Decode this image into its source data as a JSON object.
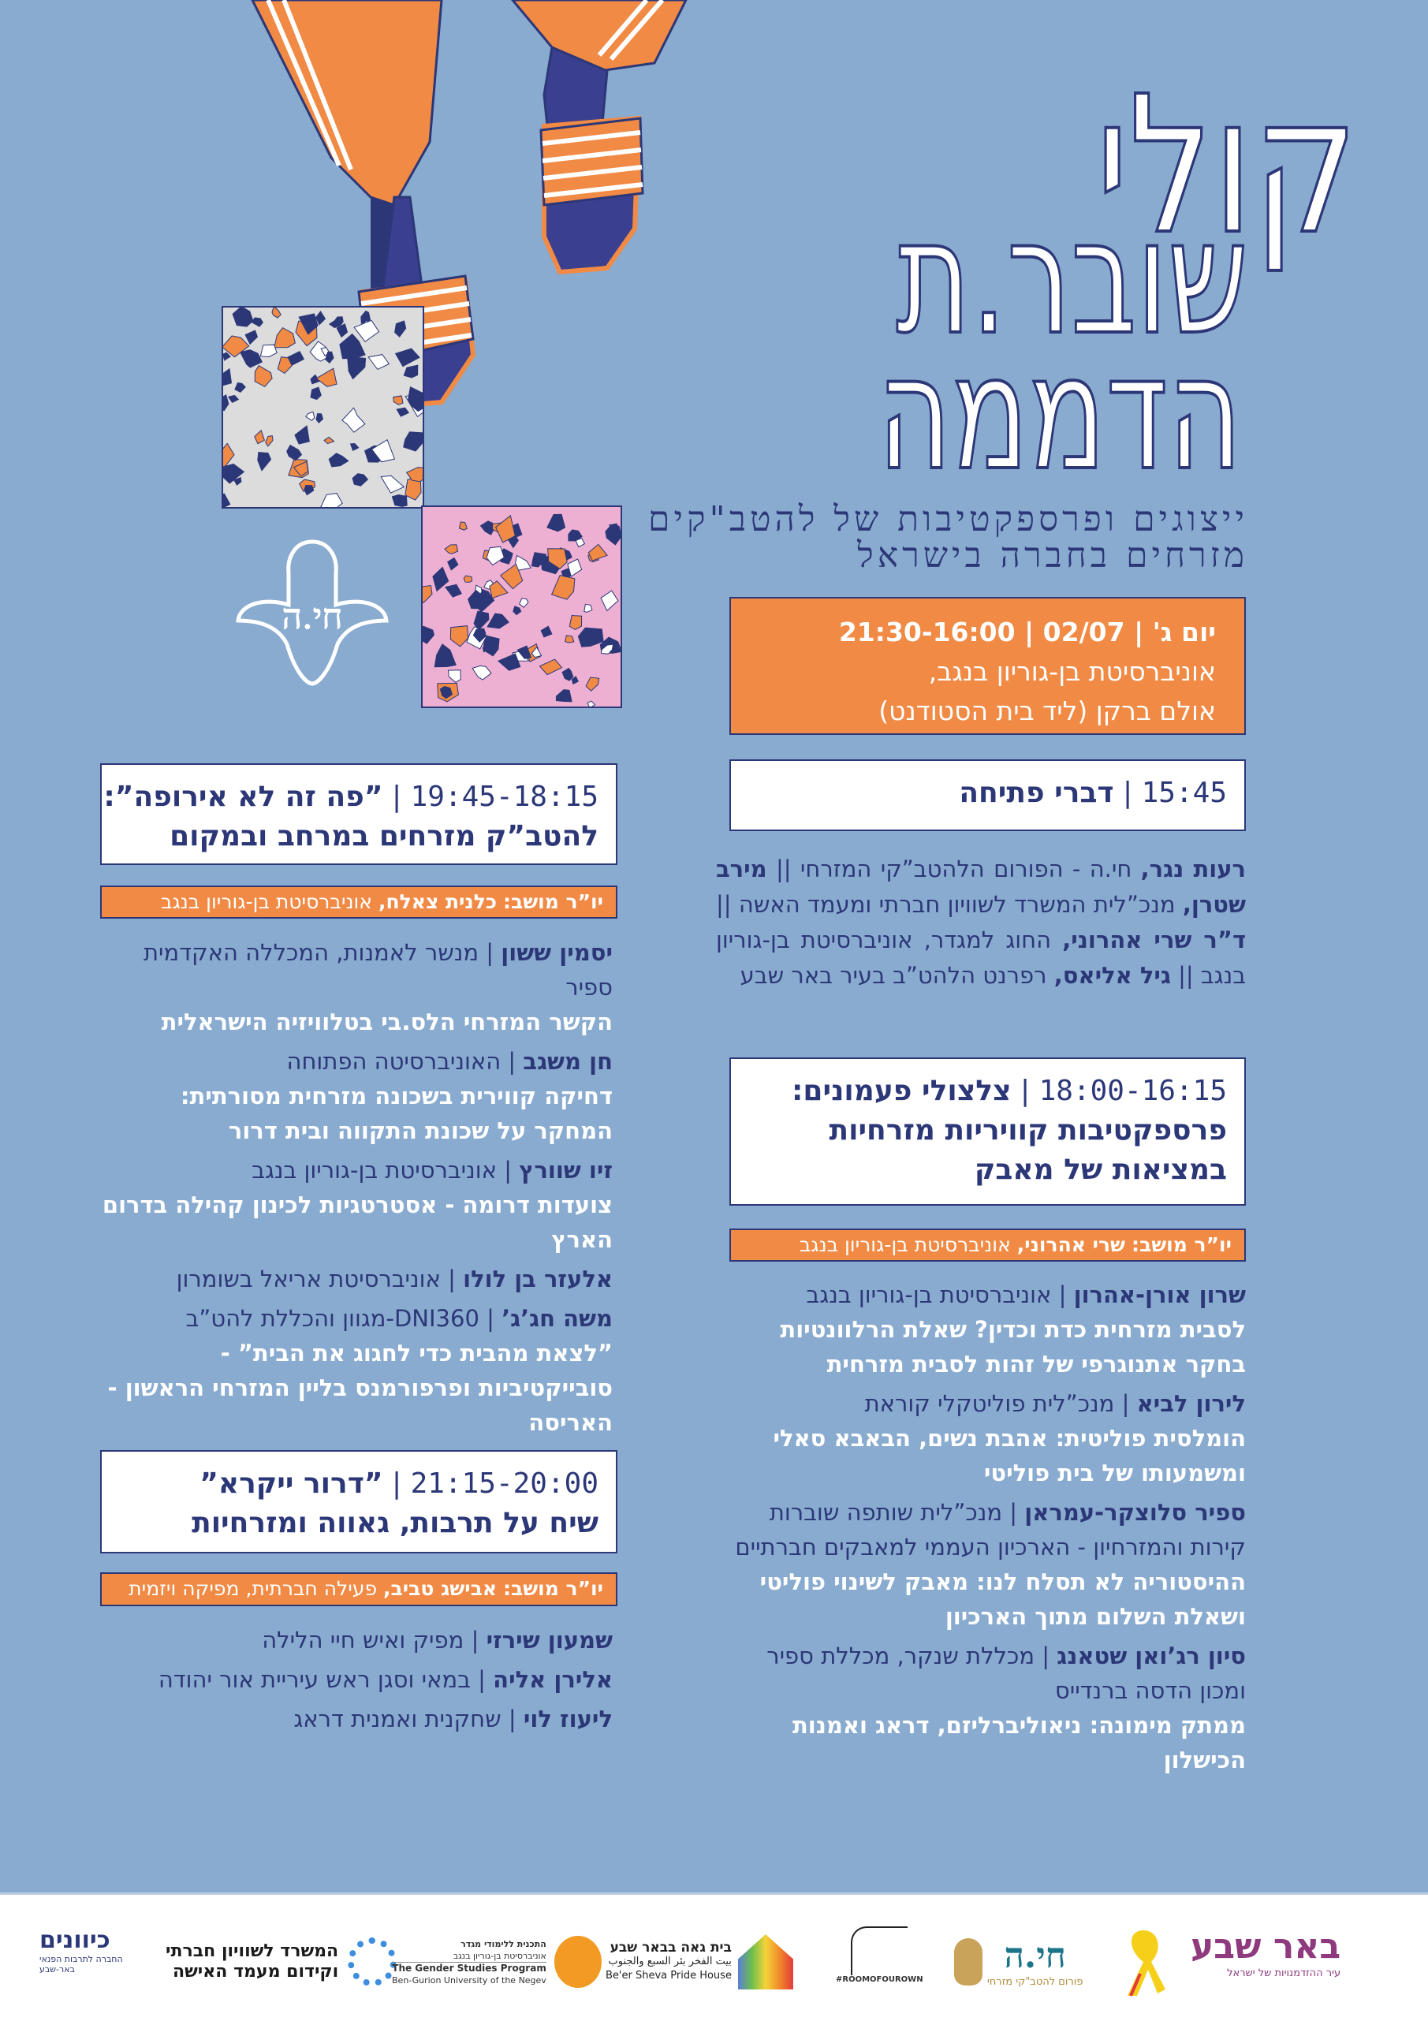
{
  "title": {
    "line1": "קולי",
    "line2": "שובר.ת",
    "line3": "הדממה"
  },
  "subtitle": {
    "line1": "ייצוגים ופרספקטיבות של להטב\"קים",
    "line2": "מזרחים בחברה בישראל"
  },
  "hamsa_logo": "חי.ה",
  "event": {
    "day": "יום ג'",
    "date": "02/07",
    "hours": "21:30-16:00",
    "separator": "|",
    "venue_line1": "אוניברסיטת בן-גוריון בנגב,",
    "venue_line2": "אולם ברקן (ליד בית הסטודנט)"
  },
  "opening": {
    "time": "15:45",
    "title": "דברי פתיחה",
    "segments": [
      {
        "text": "רעות נגר,",
        "bold": true
      },
      {
        "text": " חי.ה - הפורום הלהטב”קי המזרחי || ",
        "bold": false
      },
      {
        "text": "מירב שטרן,",
        "bold": true
      },
      {
        "text": " מנכ”לית המשרד לשוויון חברתי ומעמד האשה || ",
        "bold": false
      },
      {
        "text": "ד”ר שרי אהרוני,",
        "bold": true
      },
      {
        "text": " החוג למגדר, אוניברסיטת בן-גוריון בנגב || ",
        "bold": false
      },
      {
        "text": "גיל אליאס,",
        "bold": true
      },
      {
        "text": " רפרנט הלהט”ב בעיר באר שבע",
        "bold": false
      }
    ]
  },
  "sessions": [
    {
      "time": "18:00-16:15",
      "title_line1": "צלצולי פעמונים:",
      "title_line2": "פרספקטיבות קוויריות מזרחיות",
      "title_line3": "במציאות של מאבק",
      "chair_label": "יו”ר מושב:",
      "chair_name": "שרי אהרוני,",
      "chair_affiliation": "אוניברסיטת בן-גוריון בנגב",
      "speakers": [
        {
          "name": "שרון אורן-אהרון",
          "affiliation": "אוניברסיטת בן-גוריון בנגב",
          "talk": "לסבית מזרחית כדת וכדין? שאלת הרלוונטיות בחקר אתנוגרפי של זהות לסבית מזרחית"
        },
        {
          "name": "לירון לביא",
          "affiliation": "מנכ”לית פוליטקלי קוראת",
          "talk": "הומלסית פוליטית: אהבת נשים, הבאבא סאלי ומשמעותו של בית פוליטי"
        },
        {
          "name": "ספיר סלוצקר-עמראן",
          "affiliation": "מנכ”לית שותפה שוברות קירות והמזרחיון - הארכיון העממי למאבקים חברתיים",
          "talk": "ההיסטוריה לא תסלח לנו: מאבק לשינוי פוליטי ושאלת השלום מתוך הארכיון"
        },
        {
          "name": "סיון רג’ואן שטאנג",
          "affiliation": "מכללת שנקר, מכללת ספיר ומכון הדסה ברנדייס",
          "talk": "ממתק מימונה: ניאוליברליזם, דראג ואמנות הכישלון"
        }
      ]
    },
    {
      "time": "19:45-18:15",
      "title_line1": "”פה זה לא אירופה”:",
      "title_line2": "להטב”ק מזרחים במרחב ובמקום",
      "chair_label": "יו”ר מושב:",
      "chair_name": "כלנית צאלח,",
      "chair_affiliation": "אוניברסיטת בן-גוריון בנגב",
      "speakers": [
        {
          "name": "יסמין ששון",
          "affiliation": "מנשר לאמנות, המכללה האקדמית ספיר",
          "talk": "הקשר המזרחי הלס.בי בטלוויזיה הישראלית"
        },
        {
          "name": "חן משגב",
          "affiliation": "האוניברסיטה הפתוחה",
          "talk": "דחיקה קווירית בשכונה מזרחית מסורתית: המחקר על שכונת התקווה ובית דרור"
        },
        {
          "name": "זיו שוורץ",
          "affiliation": "אוניברסיטת בן-גוריון בנגב",
          "talk": "צועדות דרומה - אסטרטגיות לכינון קהילה בדרום הארץ"
        },
        {
          "name": "אלעזר בן לולו",
          "affiliation": "אוניברסיטת אריאל בשומרון",
          "talk": ""
        },
        {
          "name": "משה חג’ג’",
          "affiliation": "DNI360-מגוון והכללת להט”ב",
          "talk": "”לצאת מהבית כדי לחגוג את הבית” - סובייקטיביות ופרפורמנס בליין המזרחי הראשון - האריסה"
        }
      ]
    },
    {
      "time": "21:15-20:00",
      "title_line1": "”דרור ייקרא”",
      "title_line2": "שיח על תרבות, גאווה ומזרחיות",
      "chair_label": "יו”ר מושב:",
      "chair_name": "אבישג טביב,",
      "chair_affiliation": "פעילה חברתית, מפיקה ויזמית",
      "speakers": [
        {
          "name": "שמעון שירזי",
          "affiliation": "מפיק ואיש חיי הלילה",
          "talk": ""
        },
        {
          "name": "אלירן אליה",
          "affiliation": "במאי וסגן ראש עיריית אור יהודה",
          "talk": ""
        },
        {
          "name": "ליעוז לוי",
          "affiliation": "שחקנית ואמנית דראג",
          "talk": ""
        }
      ]
    }
  ],
  "footer_logos": {
    "kivunim": {
      "name": "כיוונים",
      "sub1": "החברה לתרבות הפנאי",
      "sub2": "באר-שבע"
    },
    "ministry": {
      "line1": "המשרד לשוויון חברתי",
      "line2": "וקידום מעמד האישה"
    },
    "gender": {
      "line1": "התכנית ללימודי מגדר",
      "line2": "אוניברסיטת בן-גוריון בנגב",
      "line3": "The Gender Studies Program",
      "line4": "Ben-Gurion University of the Negev"
    },
    "pride_house": {
      "line1": "בית גאה בבאר שבע",
      "line2": "بيت الفخر بئر السبع والجنوب",
      "line3": "Be'er Sheva Pride House"
    },
    "room": {
      "text": "#ROOMOFOUROWN"
    },
    "hayah": {
      "name": "חי.ה",
      "sub": "פורום להטב\"קי מזרחי"
    },
    "beersheva": {
      "name": "באר שבע",
      "sub": "עיר ההזדמנויות של ישראל"
    }
  },
  "colors": {
    "background": "#89abcf",
    "navy": "#2c3778",
    "orange": "#f08a45",
    "pink": "#eeb0d2",
    "tile_gray": "#dcdcdc"
  }
}
